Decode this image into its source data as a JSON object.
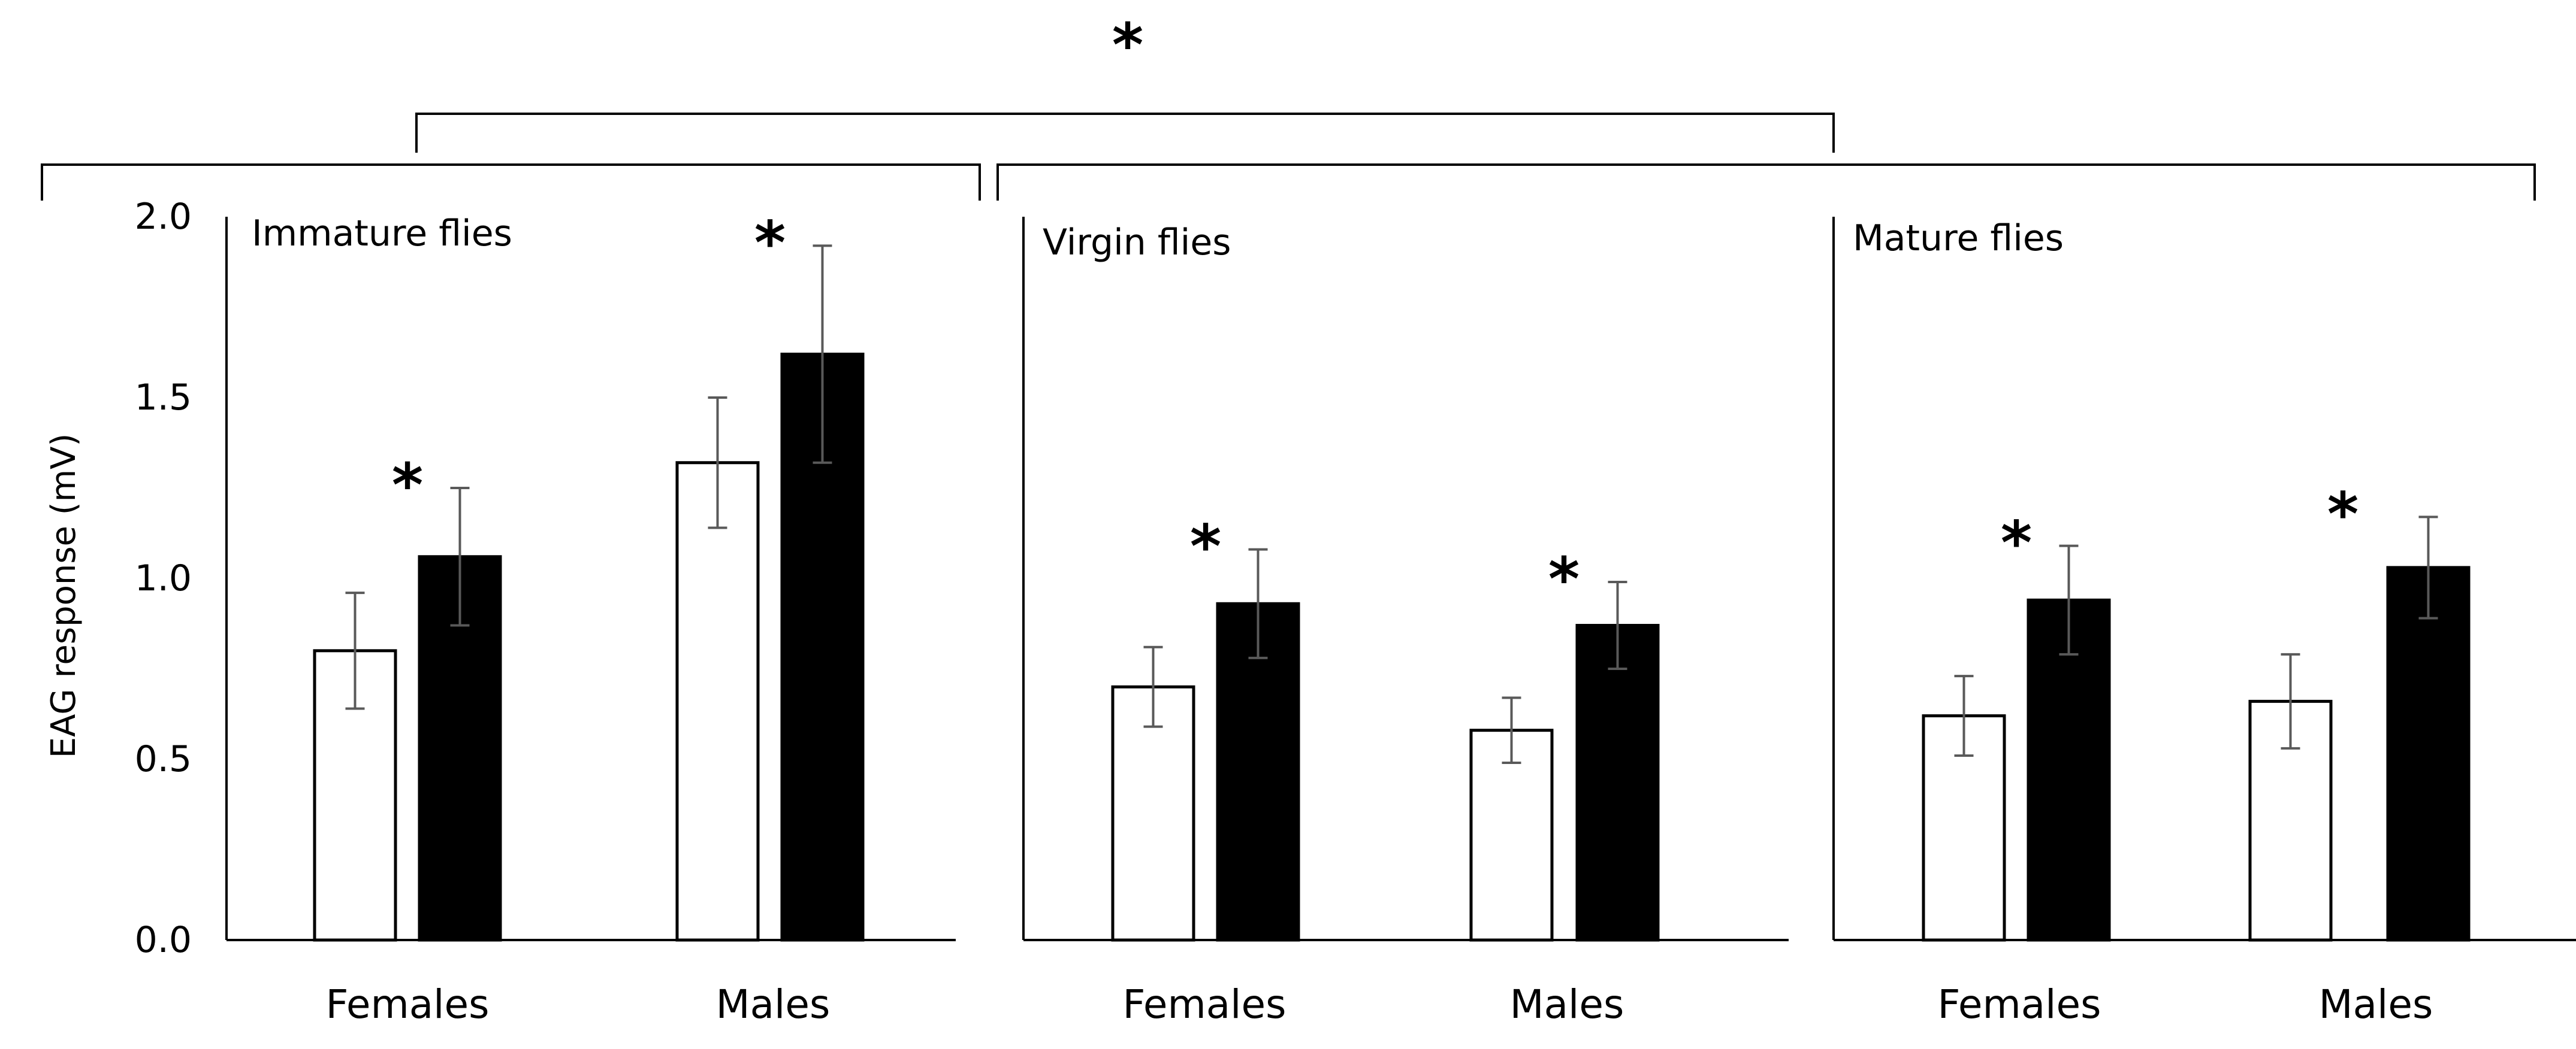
{
  "chart_data": {
    "type": "bar",
    "ylabel": "EAG response (mV)",
    "ylim": [
      0,
      2.0
    ],
    "yticks": [
      "0.0",
      "0.5",
      "1.0",
      "1.5",
      "2.0"
    ],
    "yticks_values": [
      0,
      0.5,
      1.0,
      1.5,
      2.0
    ],
    "series_colors": {
      "white": "#ffffff",
      "black": "#000000"
    },
    "bar_edge_color": "#000000",
    "top_significance": "*",
    "panels": [
      {
        "title": "Immature flies",
        "groups": [
          {
            "label": "Females",
            "values": [
              0.8,
              1.06
            ],
            "errors": [
              0.16,
              0.19
            ],
            "significance": "*"
          },
          {
            "label": "Males",
            "values": [
              1.32,
              1.62
            ],
            "errors": [
              0.18,
              0.3
            ],
            "significance": "*"
          }
        ]
      },
      {
        "title": "Virgin flies",
        "groups": [
          {
            "label": "Females",
            "values": [
              0.7,
              0.93
            ],
            "errors": [
              0.11,
              0.15
            ],
            "significance": "*"
          },
          {
            "label": "Males",
            "values": [
              0.58,
              0.87
            ],
            "errors": [
              0.09,
              0.12
            ],
            "significance": "*"
          }
        ]
      },
      {
        "title": "Mature flies",
        "groups": [
          {
            "label": "Females",
            "values": [
              0.62,
              0.94
            ],
            "errors": [
              0.11,
              0.15
            ],
            "significance": "*"
          },
          {
            "label": "Males",
            "values": [
              0.66,
              1.03
            ],
            "errors": [
              0.13,
              0.14
            ],
            "significance": "*"
          }
        ]
      }
    ]
  }
}
